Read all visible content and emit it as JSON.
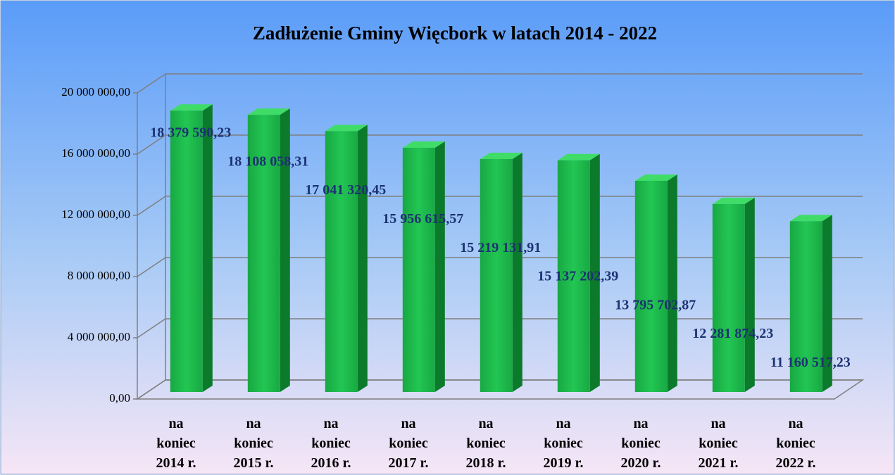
{
  "chart_data": {
    "type": "bar3d",
    "title": "Zadłużenie Gminy Więcbork w latach 2014 - 2022",
    "categories": [
      "na koniec 2014 r.",
      "na koniec 2015 r.",
      "na koniec 2016 r.",
      "na koniec 2017 r.",
      "na koniec 2018 r.",
      "na koniec 2019 r.",
      "na koniec 2020 r.",
      "na koniec 2021 r.",
      "na koniec 2022 r."
    ],
    "values": [
      18379590.23,
      18108058.31,
      17041320.45,
      15956615.57,
      15219131.91,
      15137202.39,
      13795702.87,
      12281874.23,
      11160517.23
    ],
    "value_labels": [
      "18 379 590,23",
      "18 108 058,31",
      "17 041 320,45",
      "15 956 615,57",
      "15 219 131,91",
      "15 137 202,39",
      "13 795 702,87",
      "12 281 874,23",
      "11 160 517,23"
    ],
    "color": "#1db84a",
    "ylim": [
      0,
      20000000
    ],
    "yticks": [
      {
        "value": 0,
        "label": "0,00"
      },
      {
        "value": 4000000,
        "label": "4 000 000,00"
      },
      {
        "value": 8000000,
        "label": "8 000 000,00"
      },
      {
        "value": 12000000,
        "label": "12 000 000,00"
      },
      {
        "value": 16000000,
        "label": "16 000 000,00"
      },
      {
        "value": 20000000,
        "label": "20 000 000,00"
      }
    ],
    "grid": true
  }
}
